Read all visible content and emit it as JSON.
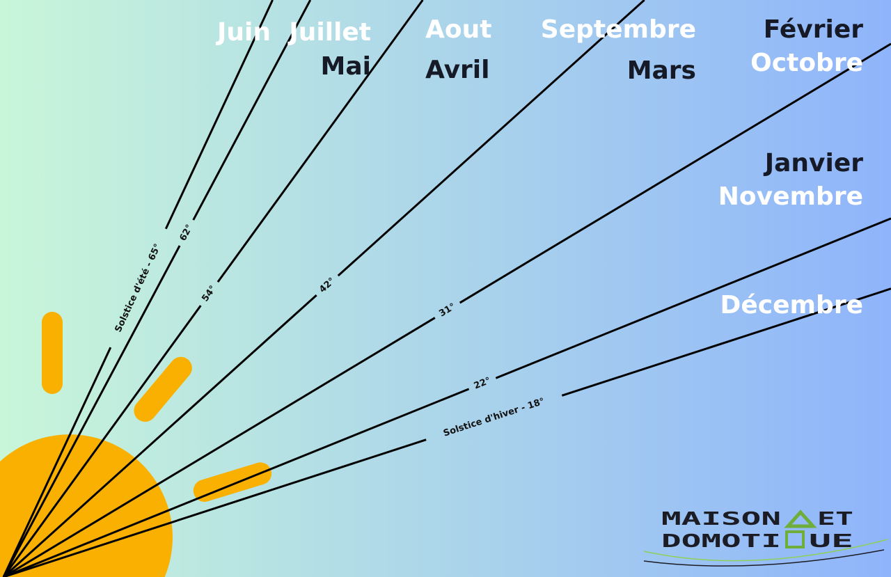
{
  "colors": {
    "background_left": "#c8f6d9",
    "background_right": "#8fb4fb",
    "sun": "#f9b000",
    "line": "#000000",
    "label_light": "#ffffff",
    "label_dark": "#161a26",
    "logo_accent": "#6fae3a"
  },
  "angles": [
    {
      "deg": 65,
      "label": "Solstice d'été - 65°"
    },
    {
      "deg": 62,
      "label": "62°"
    },
    {
      "deg": 54,
      "label": "54°"
    },
    {
      "deg": 42,
      "label": "42°"
    },
    {
      "deg": 31,
      "label": "31°"
    },
    {
      "deg": 22,
      "label": "22°"
    },
    {
      "deg": 18,
      "label": "Solstice d'hiver - 18°"
    }
  ],
  "months": {
    "juin": {
      "text": "Juin",
      "tone": "light"
    },
    "juillet": {
      "text": "Juillet",
      "tone": "light"
    },
    "mai": {
      "text": "Mai",
      "tone": "dark"
    },
    "aout": {
      "text": "Aout",
      "tone": "light"
    },
    "avril": {
      "text": "Avril",
      "tone": "dark"
    },
    "septembre": {
      "text": "Septembre",
      "tone": "light"
    },
    "mars": {
      "text": "Mars",
      "tone": "dark"
    },
    "fevrier": {
      "text": "Février",
      "tone": "dark"
    },
    "octobre": {
      "text": "Octobre",
      "tone": "light"
    },
    "janvier": {
      "text": "Janvier",
      "tone": "dark"
    },
    "novembre": {
      "text": "Novembre",
      "tone": "light"
    },
    "decembre": {
      "text": "Décembre",
      "tone": "light"
    }
  },
  "logo": {
    "line1": "MAISON",
    "line1b": "ET",
    "line2": "DOMOTI",
    "line2b": "UE"
  }
}
